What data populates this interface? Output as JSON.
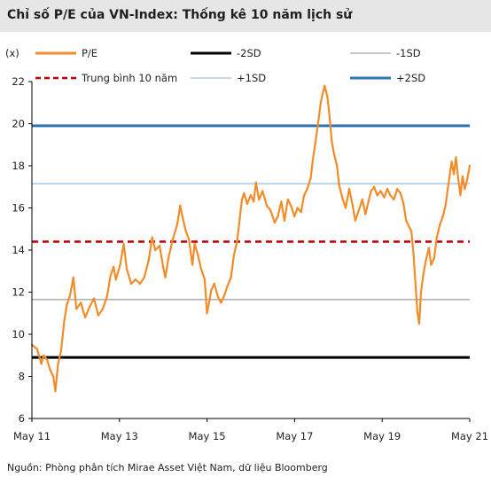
{
  "title": "Chỉ số P/E của VN-Index: Thống kê 10 năm lịch sử",
  "source": "Nguồn: Phòng phân tích Mirae Asset Việt Nam, dữ liệu Bloomberg",
  "colors": {
    "pe": "#f28c28",
    "minus2sd": "#000000",
    "minus1sd": "#a6a6a6",
    "mean": "#c00000",
    "plus1sd": "#9dc3e6",
    "plus2sd": "#2e75b6",
    "title_bg": "#e6e6e6"
  },
  "chart_data": {
    "type": "line",
    "title": "Chỉ số P/E của VN-Index: Thống kê 10 năm lịch sử",
    "ylabel": "(x)",
    "xlabel": "",
    "ylim": [
      6,
      22
    ],
    "yticks": [
      6,
      8,
      10,
      12,
      14,
      16,
      18,
      20,
      22
    ],
    "xlim": [
      2011.333,
      2021.333
    ],
    "xticks": [
      {
        "value": 2011.333,
        "label": "May 11"
      },
      {
        "value": 2013.333,
        "label": "May 13"
      },
      {
        "value": 2015.333,
        "label": "May 15"
      },
      {
        "value": 2017.333,
        "label": "May 17"
      },
      {
        "value": 2019.333,
        "label": "May 19"
      },
      {
        "value": 2021.333,
        "label": "May 21"
      }
    ],
    "grid": false,
    "legend_placement": "top",
    "legend": [
      {
        "key": "pe",
        "label": "P/E",
        "style": "solid"
      },
      {
        "key": "minus2sd",
        "label": "-2SD",
        "style": "solid"
      },
      {
        "key": "minus1sd",
        "label": "-1SD",
        "style": "solid"
      },
      {
        "key": "mean",
        "label": "Trung bình 10 năm",
        "style": "dashed"
      },
      {
        "key": "plus1sd",
        "label": "+1SD",
        "style": "solid"
      },
      {
        "key": "plus2sd",
        "label": "+2SD",
        "style": "solid"
      }
    ],
    "reference_lines": [
      {
        "key": "minus2sd",
        "value": 8.9
      },
      {
        "key": "minus1sd",
        "value": 11.65
      },
      {
        "key": "mean",
        "value": 14.4
      },
      {
        "key": "plus1sd",
        "value": 17.15
      },
      {
        "key": "plus2sd",
        "value": 19.9
      }
    ],
    "series": [
      {
        "key": "pe",
        "name": "P/E",
        "points": [
          [
            2011.333,
            9.5
          ],
          [
            2011.45,
            9.3
          ],
          [
            2011.55,
            8.6
          ],
          [
            2011.6,
            9.0
          ],
          [
            2011.68,
            8.8
          ],
          [
            2011.75,
            8.3
          ],
          [
            2011.82,
            8.0
          ],
          [
            2011.87,
            7.3
          ],
          [
            2011.93,
            8.6
          ],
          [
            2012.0,
            9.2
          ],
          [
            2012.07,
            10.6
          ],
          [
            2012.13,
            11.4
          ],
          [
            2012.2,
            11.8
          ],
          [
            2012.28,
            12.7
          ],
          [
            2012.35,
            11.2
          ],
          [
            2012.45,
            11.5
          ],
          [
            2012.55,
            10.8
          ],
          [
            2012.65,
            11.3
          ],
          [
            2012.75,
            11.7
          ],
          [
            2012.85,
            10.9
          ],
          [
            2012.95,
            11.2
          ],
          [
            2013.05,
            11.8
          ],
          [
            2013.13,
            12.8
          ],
          [
            2013.2,
            13.2
          ],
          [
            2013.25,
            12.6
          ],
          [
            2013.35,
            13.3
          ],
          [
            2013.43,
            14.3
          ],
          [
            2013.5,
            13.1
          ],
          [
            2013.6,
            12.4
          ],
          [
            2013.7,
            12.6
          ],
          [
            2013.8,
            12.4
          ],
          [
            2013.9,
            12.7
          ],
          [
            2014.0,
            13.5
          ],
          [
            2014.08,
            14.6
          ],
          [
            2014.15,
            14.0
          ],
          [
            2014.25,
            14.2
          ],
          [
            2014.33,
            13.2
          ],
          [
            2014.38,
            12.7
          ],
          [
            2014.45,
            13.6
          ],
          [
            2014.55,
            14.5
          ],
          [
            2014.65,
            15.2
          ],
          [
            2014.72,
            16.1
          ],
          [
            2014.78,
            15.5
          ],
          [
            2014.85,
            14.9
          ],
          [
            2014.92,
            14.5
          ],
          [
            2015.0,
            13.3
          ],
          [
            2015.05,
            14.3
          ],
          [
            2015.12,
            13.8
          ],
          [
            2015.2,
            13.1
          ],
          [
            2015.28,
            12.6
          ],
          [
            2015.33,
            11.0
          ],
          [
            2015.38,
            11.5
          ],
          [
            2015.43,
            12.1
          ],
          [
            2015.5,
            12.4
          ],
          [
            2015.58,
            11.8
          ],
          [
            2015.65,
            11.5
          ],
          [
            2015.72,
            11.8
          ],
          [
            2015.8,
            12.3
          ],
          [
            2015.88,
            12.7
          ],
          [
            2015.95,
            13.8
          ],
          [
            2016.02,
            14.4
          ],
          [
            2016.08,
            15.5
          ],
          [
            2016.13,
            16.4
          ],
          [
            2016.18,
            16.7
          ],
          [
            2016.25,
            16.2
          ],
          [
            2016.33,
            16.6
          ],
          [
            2016.4,
            16.3
          ],
          [
            2016.45,
            17.2
          ],
          [
            2016.52,
            16.4
          ],
          [
            2016.6,
            16.8
          ],
          [
            2016.7,
            16.1
          ],
          [
            2016.78,
            15.9
          ],
          [
            2016.88,
            15.3
          ],
          [
            2016.95,
            15.6
          ],
          [
            2017.03,
            16.3
          ],
          [
            2017.1,
            15.4
          ],
          [
            2017.18,
            16.4
          ],
          [
            2017.25,
            16.1
          ],
          [
            2017.33,
            15.6
          ],
          [
            2017.4,
            16.0
          ],
          [
            2017.48,
            15.8
          ],
          [
            2017.55,
            16.6
          ],
          [
            2017.62,
            16.9
          ],
          [
            2017.7,
            17.4
          ],
          [
            2017.75,
            18.3
          ],
          [
            2017.8,
            19.0
          ],
          [
            2017.87,
            20.0
          ],
          [
            2017.93,
            21.0
          ],
          [
            2017.97,
            21.4
          ],
          [
            2018.02,
            21.8
          ],
          [
            2018.08,
            21.3
          ],
          [
            2018.12,
            20.6
          ],
          [
            2018.18,
            19.2
          ],
          [
            2018.23,
            18.6
          ],
          [
            2018.3,
            18.0
          ],
          [
            2018.35,
            17.1
          ],
          [
            2018.42,
            16.5
          ],
          [
            2018.5,
            16.0
          ],
          [
            2018.58,
            16.9
          ],
          [
            2018.65,
            16.2
          ],
          [
            2018.72,
            15.4
          ],
          [
            2018.8,
            15.9
          ],
          [
            2018.88,
            16.4
          ],
          [
            2018.95,
            15.7
          ],
          [
            2019.02,
            16.3
          ],
          [
            2019.08,
            16.8
          ],
          [
            2019.15,
            17.0
          ],
          [
            2019.22,
            16.6
          ],
          [
            2019.3,
            16.8
          ],
          [
            2019.38,
            16.5
          ],
          [
            2019.45,
            16.9
          ],
          [
            2019.52,
            16.6
          ],
          [
            2019.6,
            16.4
          ],
          [
            2019.68,
            16.9
          ],
          [
            2019.75,
            16.7
          ],
          [
            2019.82,
            16.2
          ],
          [
            2019.88,
            15.4
          ],
          [
            2019.95,
            15.1
          ],
          [
            2020.0,
            14.9
          ],
          [
            2020.05,
            13.8
          ],
          [
            2020.1,
            12.2
          ],
          [
            2020.14,
            11.0
          ],
          [
            2020.18,
            10.5
          ],
          [
            2020.22,
            12.0
          ],
          [
            2020.27,
            12.8
          ],
          [
            2020.33,
            13.5
          ],
          [
            2020.4,
            14.1
          ],
          [
            2020.45,
            13.3
          ],
          [
            2020.52,
            13.6
          ],
          [
            2020.58,
            14.6
          ],
          [
            2020.65,
            15.2
          ],
          [
            2020.72,
            15.6
          ],
          [
            2020.78,
            16.1
          ],
          [
            2020.83,
            16.9
          ],
          [
            2020.88,
            17.6
          ],
          [
            2020.92,
            18.2
          ],
          [
            2020.97,
            17.6
          ],
          [
            2021.02,
            18.4
          ],
          [
            2021.07,
            17.4
          ],
          [
            2021.12,
            16.6
          ],
          [
            2021.17,
            17.5
          ],
          [
            2021.22,
            16.9
          ],
          [
            2021.27,
            17.3
          ],
          [
            2021.333,
            18.0
          ]
        ]
      }
    ]
  }
}
